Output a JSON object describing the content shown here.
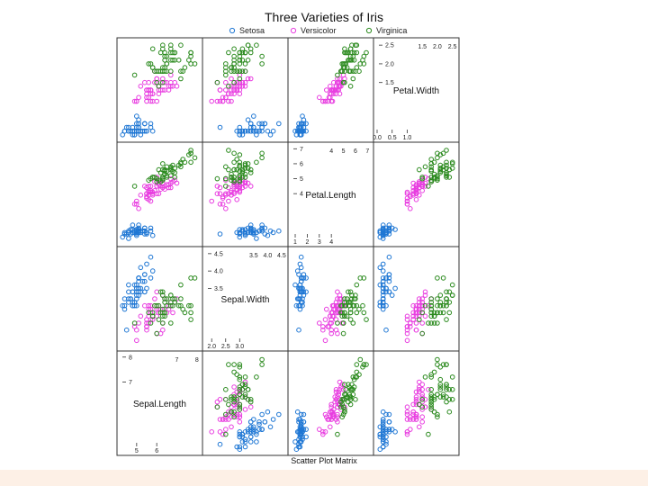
{
  "chart_data": {
    "type": "scatter",
    "title": "Three Varieties of Iris",
    "xlabel": "Scatter Plot Matrix",
    "colors": {
      "Setosa": "#1f77d4",
      "Versicolor": "#e83ee0",
      "Virginica": "#2b8a1e"
    },
    "variables": [
      {
        "name": "Sepal.Length",
        "range": [
          4.2,
          8.1
        ],
        "ticks_low": [
          {
            "v": 5,
            "l": "5"
          },
          {
            "v": 6,
            "l": "6"
          }
        ],
        "ticks_high": [
          {
            "v": 7,
            "l": "7"
          },
          {
            "v": 8,
            "l": "8"
          }
        ]
      },
      {
        "name": "Sepal.Width",
        "range": [
          1.8,
          4.6
        ],
        "ticks_low": [
          {
            "v": 2.0,
            "l": "2.0"
          },
          {
            "v": 2.5,
            "l": "2.5"
          },
          {
            "v": 3.0,
            "l": "3.0"
          }
        ],
        "ticks_high": [
          {
            "v": 3.5,
            "l": "3.5"
          },
          {
            "v": 4.0,
            "l": "4.0"
          },
          {
            "v": 4.5,
            "l": "4.5"
          }
        ]
      },
      {
        "name": "Petal.Length",
        "range": [
          0.7,
          7.2
        ],
        "ticks_low": [
          {
            "v": 1,
            "l": "1"
          },
          {
            "v": 2,
            "l": "2"
          },
          {
            "v": 3,
            "l": "3"
          },
          {
            "v": 4,
            "l": "4"
          }
        ],
        "ticks_high": [
          {
            "v": 4,
            "l": "4"
          },
          {
            "v": 5,
            "l": "5"
          },
          {
            "v": 6,
            "l": "6"
          },
          {
            "v": 7,
            "l": "7"
          }
        ]
      },
      {
        "name": "Petal.Width",
        "range": [
          0.0,
          2.6
        ],
        "ticks_low": [
          {
            "v": 0.0,
            "l": "0.0"
          },
          {
            "v": 0.5,
            "l": "0.5"
          },
          {
            "v": 1.0,
            "l": "1.0"
          }
        ],
        "ticks_high": [
          {
            "v": 1.5,
            "l": "1.5"
          },
          {
            "v": 2.0,
            "l": "2.0"
          },
          {
            "v": 2.5,
            "l": "2.5"
          }
        ]
      }
    ],
    "series": [
      {
        "name": "Setosa",
        "points": [
          [
            5.1,
            3.5,
            1.4,
            0.2
          ],
          [
            4.9,
            3.0,
            1.4,
            0.2
          ],
          [
            4.7,
            3.2,
            1.3,
            0.2
          ],
          [
            4.6,
            3.1,
            1.5,
            0.2
          ],
          [
            5.0,
            3.6,
            1.4,
            0.2
          ],
          [
            5.4,
            3.9,
            1.7,
            0.4
          ],
          [
            4.6,
            3.4,
            1.4,
            0.3
          ],
          [
            5.0,
            3.4,
            1.5,
            0.2
          ],
          [
            4.4,
            2.9,
            1.4,
            0.2
          ],
          [
            4.9,
            3.1,
            1.5,
            0.1
          ],
          [
            5.4,
            3.7,
            1.5,
            0.2
          ],
          [
            4.8,
            3.4,
            1.6,
            0.2
          ],
          [
            4.8,
            3.0,
            1.4,
            0.1
          ],
          [
            4.3,
            3.0,
            1.1,
            0.1
          ],
          [
            5.8,
            4.0,
            1.2,
            0.2
          ],
          [
            5.7,
            4.4,
            1.5,
            0.4
          ],
          [
            5.4,
            3.9,
            1.3,
            0.4
          ],
          [
            5.1,
            3.5,
            1.4,
            0.3
          ],
          [
            5.7,
            3.8,
            1.7,
            0.3
          ],
          [
            5.1,
            3.8,
            1.5,
            0.3
          ],
          [
            5.4,
            3.4,
            1.7,
            0.2
          ],
          [
            5.1,
            3.7,
            1.5,
            0.4
          ],
          [
            4.6,
            3.6,
            1.0,
            0.2
          ],
          [
            5.1,
            3.3,
            1.7,
            0.5
          ],
          [
            4.8,
            3.4,
            1.9,
            0.2
          ],
          [
            5.0,
            3.0,
            1.6,
            0.2
          ],
          [
            5.0,
            3.4,
            1.6,
            0.4
          ],
          [
            5.2,
            3.5,
            1.5,
            0.2
          ],
          [
            5.2,
            3.4,
            1.4,
            0.2
          ],
          [
            4.7,
            3.2,
            1.6,
            0.2
          ],
          [
            4.8,
            3.1,
            1.6,
            0.2
          ],
          [
            5.4,
            3.4,
            1.5,
            0.4
          ],
          [
            5.2,
            4.1,
            1.5,
            0.1
          ],
          [
            5.5,
            4.2,
            1.4,
            0.2
          ],
          [
            4.9,
            3.1,
            1.5,
            0.2
          ],
          [
            5.0,
            3.2,
            1.2,
            0.2
          ],
          [
            5.5,
            3.5,
            1.3,
            0.2
          ],
          [
            4.9,
            3.6,
            1.4,
            0.1
          ],
          [
            4.4,
            3.0,
            1.3,
            0.2
          ],
          [
            5.1,
            3.4,
            1.5,
            0.2
          ],
          [
            5.0,
            3.5,
            1.3,
            0.3
          ],
          [
            4.5,
            2.3,
            1.3,
            0.3
          ],
          [
            4.4,
            3.2,
            1.3,
            0.2
          ],
          [
            5.0,
            3.5,
            1.6,
            0.6
          ],
          [
            5.1,
            3.8,
            1.9,
            0.4
          ],
          [
            4.8,
            3.0,
            1.4,
            0.3
          ],
          [
            5.1,
            3.8,
            1.6,
            0.2
          ],
          [
            4.6,
            3.2,
            1.4,
            0.2
          ],
          [
            5.3,
            3.7,
            1.5,
            0.2
          ],
          [
            5.0,
            3.3,
            1.4,
            0.2
          ]
        ]
      },
      {
        "name": "Versicolor",
        "points": [
          [
            7.0,
            3.2,
            4.7,
            1.4
          ],
          [
            6.4,
            3.2,
            4.5,
            1.5
          ],
          [
            6.9,
            3.1,
            4.9,
            1.5
          ],
          [
            5.5,
            2.3,
            4.0,
            1.3
          ],
          [
            6.5,
            2.8,
            4.6,
            1.5
          ],
          [
            5.7,
            2.8,
            4.5,
            1.3
          ],
          [
            6.3,
            3.3,
            4.7,
            1.6
          ],
          [
            4.9,
            2.4,
            3.3,
            1.0
          ],
          [
            6.6,
            2.9,
            4.6,
            1.3
          ],
          [
            5.2,
            2.7,
            3.9,
            1.4
          ],
          [
            5.0,
            2.0,
            3.5,
            1.0
          ],
          [
            5.9,
            3.0,
            4.2,
            1.5
          ],
          [
            6.0,
            2.2,
            4.0,
            1.0
          ],
          [
            6.1,
            2.9,
            4.7,
            1.4
          ],
          [
            5.6,
            2.9,
            3.6,
            1.3
          ],
          [
            6.7,
            3.1,
            4.4,
            1.4
          ],
          [
            5.6,
            3.0,
            4.5,
            1.5
          ],
          [
            5.8,
            2.7,
            4.1,
            1.0
          ],
          [
            6.2,
            2.2,
            4.5,
            1.5
          ],
          [
            5.6,
            2.5,
            3.9,
            1.1
          ],
          [
            5.9,
            3.2,
            4.8,
            1.8
          ],
          [
            6.1,
            2.8,
            4.0,
            1.3
          ],
          [
            6.3,
            2.5,
            4.9,
            1.5
          ],
          [
            6.1,
            2.8,
            4.7,
            1.2
          ],
          [
            6.4,
            2.9,
            4.3,
            1.3
          ],
          [
            6.6,
            3.0,
            4.4,
            1.4
          ],
          [
            6.8,
            2.8,
            4.8,
            1.4
          ],
          [
            6.7,
            3.0,
            5.0,
            1.7
          ],
          [
            6.0,
            2.9,
            4.5,
            1.5
          ],
          [
            5.7,
            2.6,
            3.5,
            1.0
          ],
          [
            5.5,
            2.4,
            3.8,
            1.1
          ],
          [
            5.5,
            2.4,
            3.7,
            1.0
          ],
          [
            5.8,
            2.7,
            3.9,
            1.2
          ],
          [
            6.0,
            2.7,
            5.1,
            1.6
          ],
          [
            5.4,
            3.0,
            4.5,
            1.5
          ],
          [
            6.0,
            3.4,
            4.5,
            1.6
          ],
          [
            6.7,
            3.1,
            4.7,
            1.5
          ],
          [
            6.3,
            2.3,
            4.4,
            1.3
          ],
          [
            5.6,
            3.0,
            4.1,
            1.3
          ],
          [
            5.5,
            2.5,
            4.0,
            1.3
          ],
          [
            5.5,
            2.6,
            4.4,
            1.2
          ],
          [
            6.1,
            3.0,
            4.6,
            1.4
          ],
          [
            5.8,
            2.6,
            4.0,
            1.2
          ],
          [
            5.0,
            2.3,
            3.3,
            1.0
          ],
          [
            5.6,
            2.7,
            4.2,
            1.3
          ],
          [
            5.7,
            3.0,
            4.2,
            1.2
          ],
          [
            5.7,
            2.9,
            4.2,
            1.3
          ],
          [
            6.2,
            2.9,
            4.3,
            1.3
          ],
          [
            5.1,
            2.5,
            3.0,
            1.1
          ],
          [
            5.7,
            2.8,
            4.1,
            1.3
          ]
        ]
      },
      {
        "name": "Virginica",
        "points": [
          [
            6.3,
            3.3,
            6.0,
            2.5
          ],
          [
            5.8,
            2.7,
            5.1,
            1.9
          ],
          [
            7.1,
            3.0,
            5.9,
            2.1
          ],
          [
            6.3,
            2.9,
            5.6,
            1.8
          ],
          [
            6.5,
            3.0,
            5.8,
            2.2
          ],
          [
            7.6,
            3.0,
            6.6,
            2.1
          ],
          [
            4.9,
            2.5,
            4.5,
            1.7
          ],
          [
            7.3,
            2.9,
            6.3,
            1.8
          ],
          [
            6.7,
            2.5,
            5.8,
            1.8
          ],
          [
            7.2,
            3.6,
            6.1,
            2.5
          ],
          [
            6.5,
            3.2,
            5.1,
            2.0
          ],
          [
            6.4,
            2.7,
            5.3,
            1.9
          ],
          [
            6.8,
            3.0,
            5.5,
            2.1
          ],
          [
            5.7,
            2.5,
            5.0,
            2.0
          ],
          [
            5.8,
            2.8,
            5.1,
            2.4
          ],
          [
            6.4,
            3.2,
            5.3,
            2.3
          ],
          [
            6.5,
            3.0,
            5.5,
            1.8
          ],
          [
            7.7,
            3.8,
            6.7,
            2.2
          ],
          [
            7.7,
            2.6,
            6.9,
            2.3
          ],
          [
            6.0,
            2.2,
            5.0,
            1.5
          ],
          [
            6.9,
            3.2,
            5.7,
            2.3
          ],
          [
            5.6,
            2.8,
            4.9,
            2.0
          ],
          [
            7.7,
            2.8,
            6.7,
            2.0
          ],
          [
            6.3,
            2.7,
            4.9,
            1.8
          ],
          [
            6.7,
            3.3,
            5.7,
            2.1
          ],
          [
            7.2,
            3.2,
            6.0,
            1.8
          ],
          [
            6.2,
            2.8,
            4.8,
            1.8
          ],
          [
            6.1,
            3.0,
            4.9,
            1.8
          ],
          [
            6.4,
            2.8,
            5.6,
            2.1
          ],
          [
            7.2,
            3.0,
            5.8,
            1.6
          ],
          [
            7.4,
            2.8,
            6.1,
            1.9
          ],
          [
            7.9,
            3.8,
            6.4,
            2.0
          ],
          [
            6.4,
            2.8,
            5.6,
            2.2
          ],
          [
            6.3,
            2.8,
            5.1,
            1.5
          ],
          [
            6.1,
            2.6,
            5.6,
            1.4
          ],
          [
            7.7,
            3.0,
            6.1,
            2.3
          ],
          [
            6.3,
            3.4,
            5.6,
            2.4
          ],
          [
            6.4,
            3.1,
            5.5,
            1.8
          ],
          [
            6.0,
            3.0,
            4.8,
            1.8
          ],
          [
            6.9,
            3.1,
            5.4,
            2.1
          ],
          [
            6.7,
            3.1,
            5.6,
            2.4
          ],
          [
            6.9,
            3.1,
            5.1,
            2.3
          ],
          [
            5.8,
            2.7,
            5.1,
            1.9
          ],
          [
            6.8,
            3.2,
            5.9,
            2.3
          ],
          [
            6.7,
            3.3,
            5.7,
            2.5
          ],
          [
            6.7,
            3.0,
            5.2,
            2.3
          ],
          [
            6.3,
            2.5,
            5.0,
            1.9
          ],
          [
            6.5,
            3.0,
            5.2,
            2.0
          ],
          [
            6.2,
            3.4,
            5.4,
            2.3
          ],
          [
            5.9,
            3.0,
            5.1,
            1.8
          ]
        ]
      }
    ]
  }
}
